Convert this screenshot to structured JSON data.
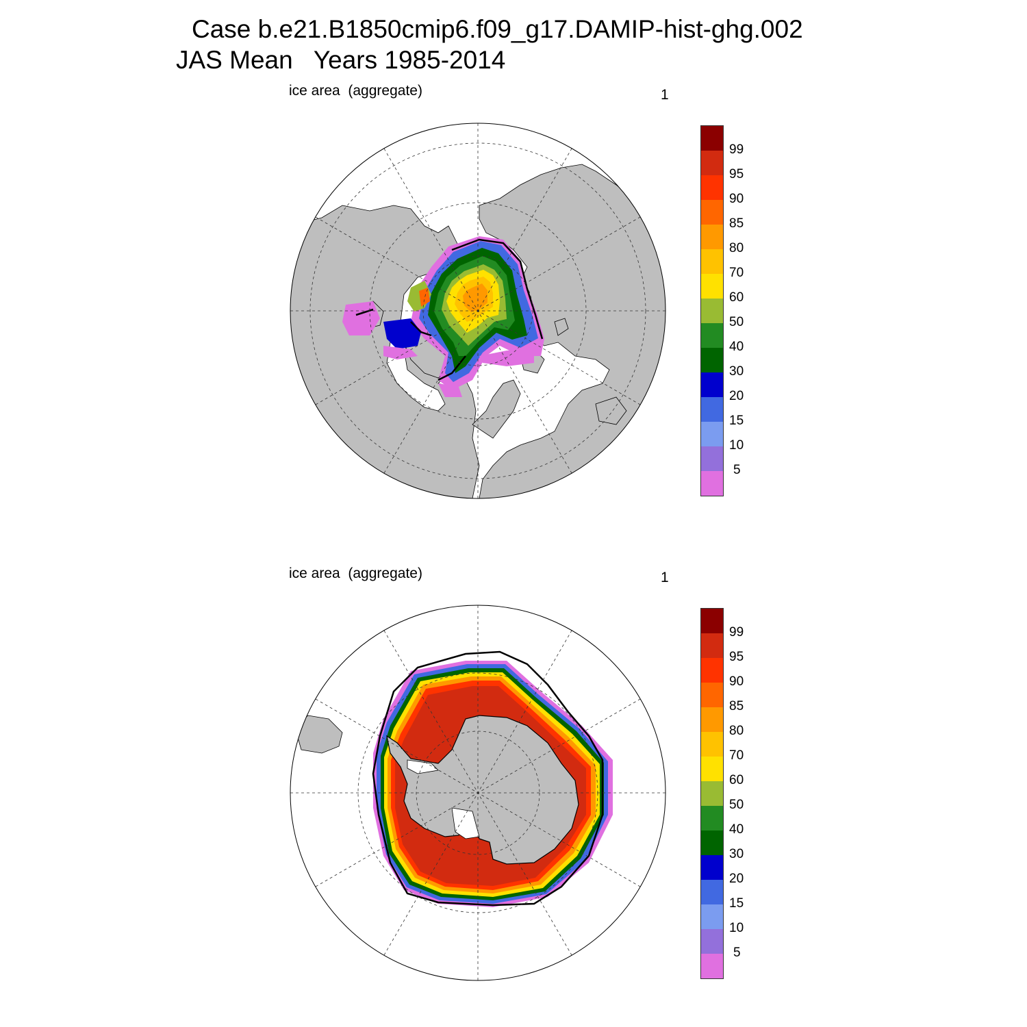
{
  "title": {
    "line1": "Case b.e21.B1850cmip6.f09_g17.DAMIP-hist-ghg.002",
    "line2": "JAS Mean   Years 1985-2014"
  },
  "panels": [
    {
      "name": "arctic",
      "hemisphere": "north",
      "left_label": "ice area  (aggregate)",
      "right_label": "1"
    },
    {
      "name": "antarctic",
      "hemisphere": "south",
      "left_label": "ice area  (aggregate)",
      "right_label": "1"
    }
  ],
  "colorbar": {
    "levels": [
      "99",
      "95",
      "90",
      "85",
      "80",
      "70",
      "60",
      "50",
      "40",
      "30",
      "20",
      "15",
      "10",
      "5"
    ],
    "colors_top_to_bottom": [
      "#8b0000",
      "#d22b10",
      "#ff3300",
      "#ff6600",
      "#ff9900",
      "#ffc200",
      "#ffe100",
      "#99bb33",
      "#228b22",
      "#006400",
      "#0000cd",
      "#4169e1",
      "#7b9cf0",
      "#9370db",
      "#e070e0"
    ]
  },
  "colors": {
    "land": "#bebebe",
    "ocean": "#ffffff",
    "obs_contour": "#000000"
  }
}
